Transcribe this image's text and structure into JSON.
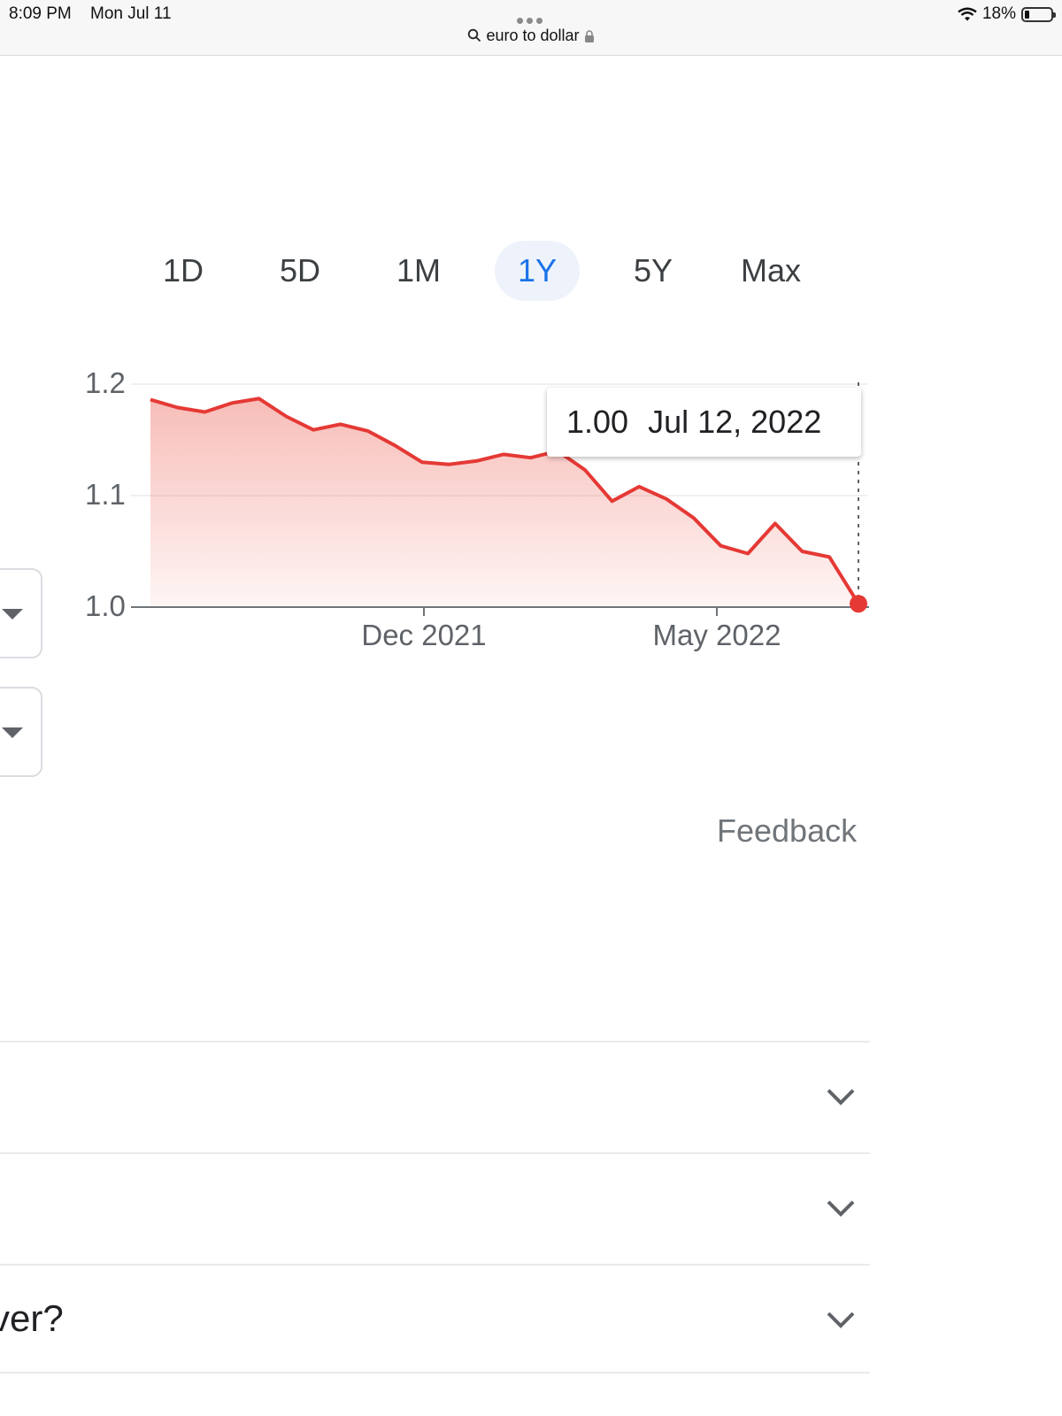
{
  "status_bar": {
    "time": "8:09 PM",
    "date": "Mon Jul 11",
    "battery": "18%",
    "address": "euro to dollar"
  },
  "range_tabs": [
    {
      "label": "1D",
      "active": false
    },
    {
      "label": "5D",
      "active": false
    },
    {
      "label": "1M",
      "active": false
    },
    {
      "label": "1Y",
      "active": true
    },
    {
      "label": "5Y",
      "active": false
    },
    {
      "label": "Max",
      "active": false
    }
  ],
  "chart_data": {
    "type": "area",
    "title": "",
    "xlabel": "",
    "ylabel": "",
    "ylim": [
      1.0,
      1.2
    ],
    "y_ticks": [
      "1.2",
      "1.1",
      "1.0"
    ],
    "x_ticks": [
      "Dec 2021",
      "May 2022"
    ],
    "x": [
      "2021-07-12",
      "2021-07-26",
      "2021-08-09",
      "2021-08-23",
      "2021-09-06",
      "2021-09-20",
      "2021-10-04",
      "2021-10-18",
      "2021-11-01",
      "2021-11-15",
      "2021-11-29",
      "2021-12-13",
      "2021-12-27",
      "2022-01-10",
      "2022-01-24",
      "2022-02-07",
      "2022-02-21",
      "2022-03-07",
      "2022-03-21",
      "2022-04-04",
      "2022-04-18",
      "2022-05-02",
      "2022-05-16",
      "2022-05-30",
      "2022-06-13",
      "2022-06-27",
      "2022-07-12"
    ],
    "series": [
      {
        "values": [
          1.186,
          1.179,
          1.175,
          1.183,
          1.187,
          1.171,
          1.159,
          1.164,
          1.158,
          1.145,
          1.13,
          1.128,
          1.131,
          1.137,
          1.134,
          1.14,
          1.123,
          1.095,
          1.108,
          1.097,
          1.08,
          1.055,
          1.048,
          1.075,
          1.05,
          1.045,
          1.003
        ],
        "color": "#e53935"
      }
    ],
    "grid": true,
    "tooltip": {
      "value": "1.00",
      "date": "Jul 12, 2022"
    }
  },
  "feedback_label": "Feedback",
  "faq": [
    {
      "text": ""
    },
    {
      "text": ""
    },
    {
      "text": "ver?"
    }
  ]
}
